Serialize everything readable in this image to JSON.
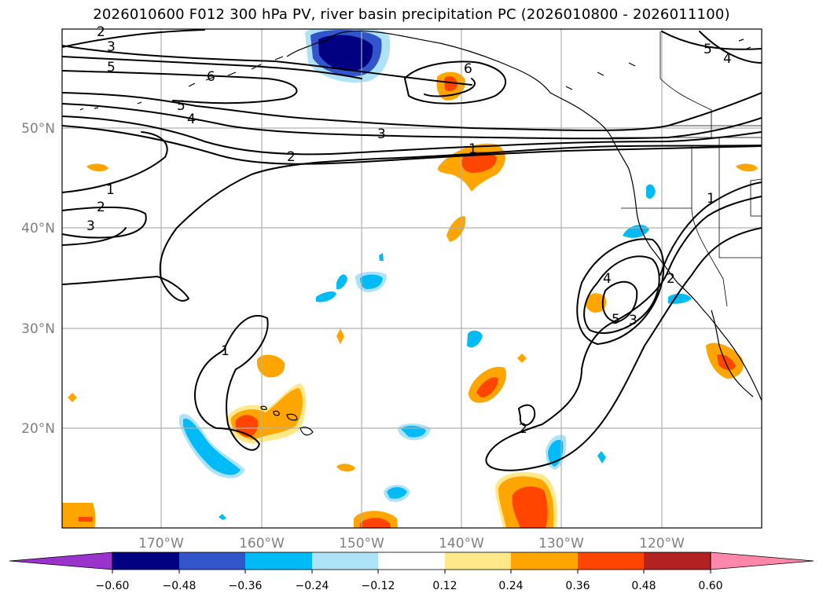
{
  "title": "2026010600 F012 300 hPa PV, river basin precipitation PC (2026010800 - 2026011100)",
  "map": {
    "lon_ticks": [
      "170°W",
      "160°W",
      "150°W",
      "140°W",
      "130°W",
      "120°W"
    ],
    "lat_ticks": [
      "50°N",
      "40°N",
      "30°N",
      "20°N"
    ],
    "pv_contour_labels": [
      "2",
      "3",
      "5",
      "6",
      "5",
      "4",
      "6",
      "3",
      "2",
      "1",
      "1",
      "2",
      "3",
      "1",
      "4",
      "5",
      "3",
      "2",
      "2",
      "1",
      "5",
      "4"
    ]
  },
  "colorbar": {
    "ticks": [
      "−0.60",
      "−0.48",
      "−0.36",
      "−0.24",
      "−0.12",
      "0.12",
      "0.24",
      "0.36",
      "0.48",
      "0.60"
    ],
    "colors": [
      "#9933cc",
      "#000080",
      "#3355cc",
      "#00bbf5",
      "#aee3f7",
      "#ffffff",
      "#ffe88a",
      "#ffa500",
      "#ff4500",
      "#b22222",
      "#ff88aa"
    ]
  }
}
